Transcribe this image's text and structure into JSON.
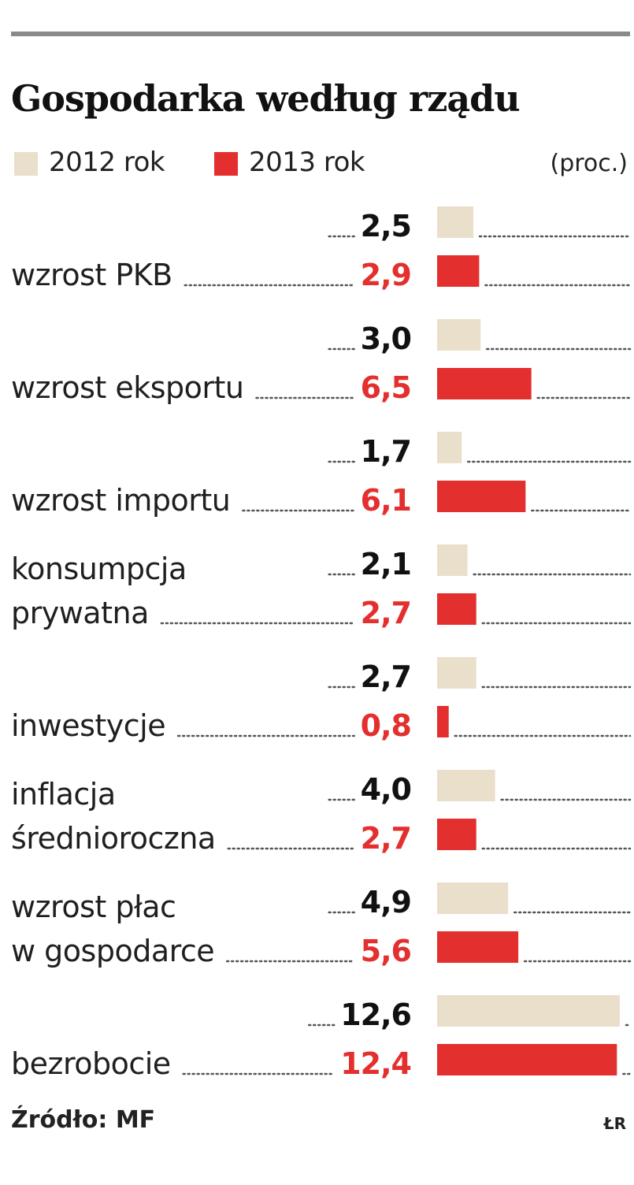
{
  "title": "Gospodarka według rządu",
  "legend": {
    "series1_label": "2012 rok",
    "series2_label": "2013 rok",
    "unit": "(proc.)"
  },
  "colors": {
    "series1": "#eadfcb",
    "series2": "#e3302f",
    "value1_text": "#111111",
    "value2_text": "#e3302f"
  },
  "chart_data": {
    "type": "bar",
    "orientation": "horizontal",
    "title": "Gospodarka według rządu",
    "unit": "(proc.)",
    "categories": [
      [
        "wzrost PKB"
      ],
      [
        "wzrost eksportu"
      ],
      [
        "wzrost importu"
      ],
      [
        "konsumpcja",
        "prywatna"
      ],
      [
        "inwestycje"
      ],
      [
        "inflacja",
        "średnioroczna"
      ],
      [
        "wzrost płac",
        "w gospodarce"
      ],
      [
        "bezrobocie"
      ]
    ],
    "series": [
      {
        "name": "2012 rok",
        "values": [
          2.5,
          3.0,
          1.7,
          2.1,
          2.7,
          4.0,
          4.9,
          12.6
        ],
        "labels": [
          "2,5",
          "3,0",
          "1,7",
          "2,1",
          "2,7",
          "4,0",
          "4,9",
          "12,6"
        ]
      },
      {
        "name": "2013 rok",
        "values": [
          2.9,
          6.5,
          6.1,
          2.7,
          0.8,
          2.7,
          5.6,
          12.4
        ],
        "labels": [
          "2,9",
          "6,5",
          "6,1",
          "2,7",
          "0,8",
          "2,7",
          "5,6",
          "12,4"
        ]
      }
    ],
    "xlim": [
      0,
      12.6
    ],
    "grid": false,
    "legend_position": "top-left"
  },
  "footer": {
    "source": "Źródło: MF",
    "credit": "ŁR"
  }
}
